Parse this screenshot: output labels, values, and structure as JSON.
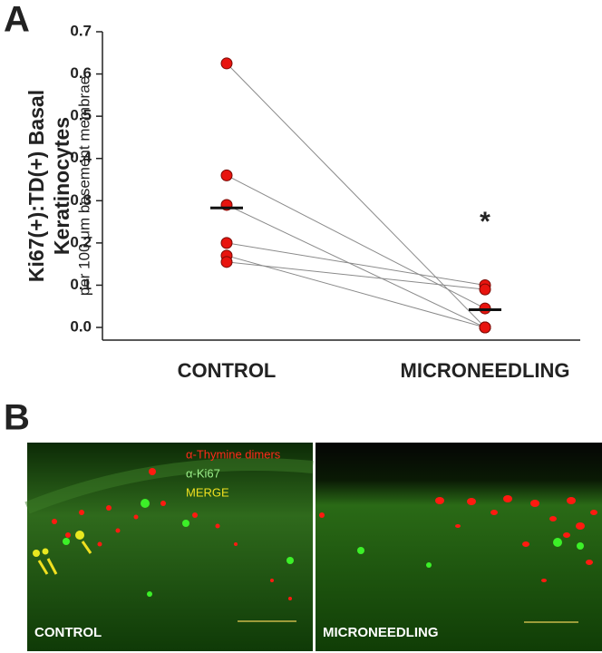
{
  "panels": [
    "A",
    "B"
  ],
  "chart_data": {
    "type": "paired",
    "ylabel": "Ki67(+):TD(+) Basal",
    "ylabel_line2": "Keratinocytes",
    "ylabel_sub": "per 100 μm basement membrae",
    "categories": [
      "CONTROL",
      "MICRONEEDLING"
    ],
    "series": [
      {
        "values": [
          0.625,
          0.0
        ]
      },
      {
        "values": [
          0.36,
          0.045
        ]
      },
      {
        "values": [
          0.29,
          0.0
        ]
      },
      {
        "values": [
          0.2,
          0.1
        ]
      },
      {
        "values": [
          0.17,
          0.0
        ]
      },
      {
        "values": [
          0.155,
          0.09
        ]
      }
    ],
    "means": [
      0.283,
      0.042
    ],
    "annotation": "*",
    "color": "#e8140f",
    "line_color": "#8a8a8a",
    "ylim": [
      -0.03,
      0.7
    ],
    "yticks": [
      {
        "value": 0,
        "label": "0.0"
      },
      0.1,
      0.2,
      0.3,
      0.4,
      0.5,
      0.6,
      0.7
    ]
  },
  "micrographs": {
    "legend": [
      "α-Thymine dimers",
      "α-Ki67",
      "MERGE"
    ],
    "labels": [
      "CONTROL",
      "MICRONEEDLING"
    ]
  }
}
